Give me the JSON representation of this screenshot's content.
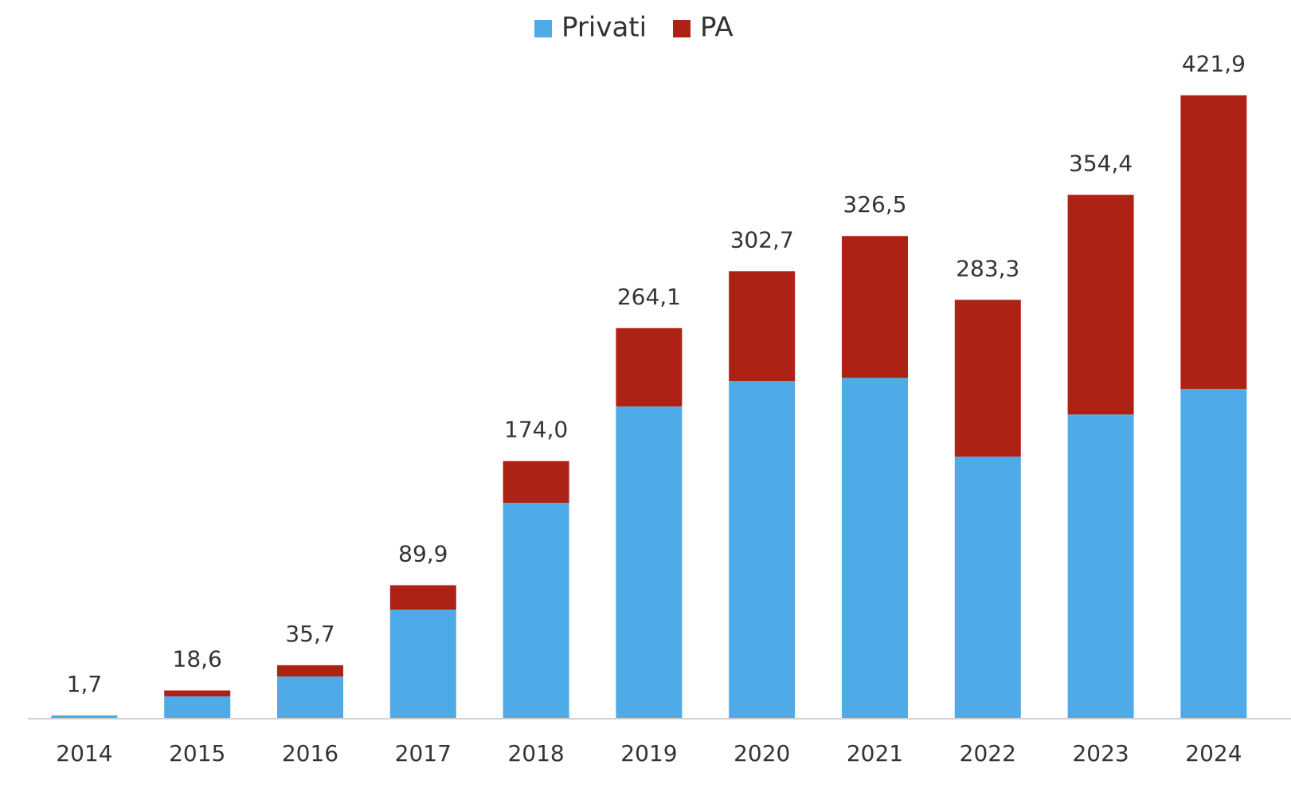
{
  "chart_data": {
    "type": "stacked_bar",
    "categories": [
      "2014",
      "2015",
      "2016",
      "2017",
      "2018",
      "2019",
      "2020",
      "2021",
      "2022",
      "2023",
      "2024"
    ],
    "series": [
      {
        "name": "Privati",
        "color": "#4fabe8",
        "values": [
          1.7,
          14.6,
          28.1,
          73.4,
          145.7,
          211.0,
          228.3,
          230.4,
          177.0,
          205.6,
          222.9
        ]
      },
      {
        "name": "PA",
        "color": "#ae2216",
        "values": [
          0,
          4.0,
          7.6,
          16.5,
          28.3,
          53.1,
          74.4,
          96.1,
          106.3,
          148.8,
          199.0
        ]
      }
    ],
    "totals": [
      1.7,
      18.6,
      35.7,
      89.9,
      174.0,
      264.1,
      302.7,
      326.5,
      283.3,
      354.4,
      421.9
    ],
    "total_labels": [
      "1,7",
      "18,6",
      "35,7",
      "89,9",
      "174,0",
      "264,1",
      "302,7",
      "326,5",
      "283,3",
      "354,4",
      "421,9"
    ],
    "ylim": [
      0,
      440
    ],
    "legend": "top"
  }
}
